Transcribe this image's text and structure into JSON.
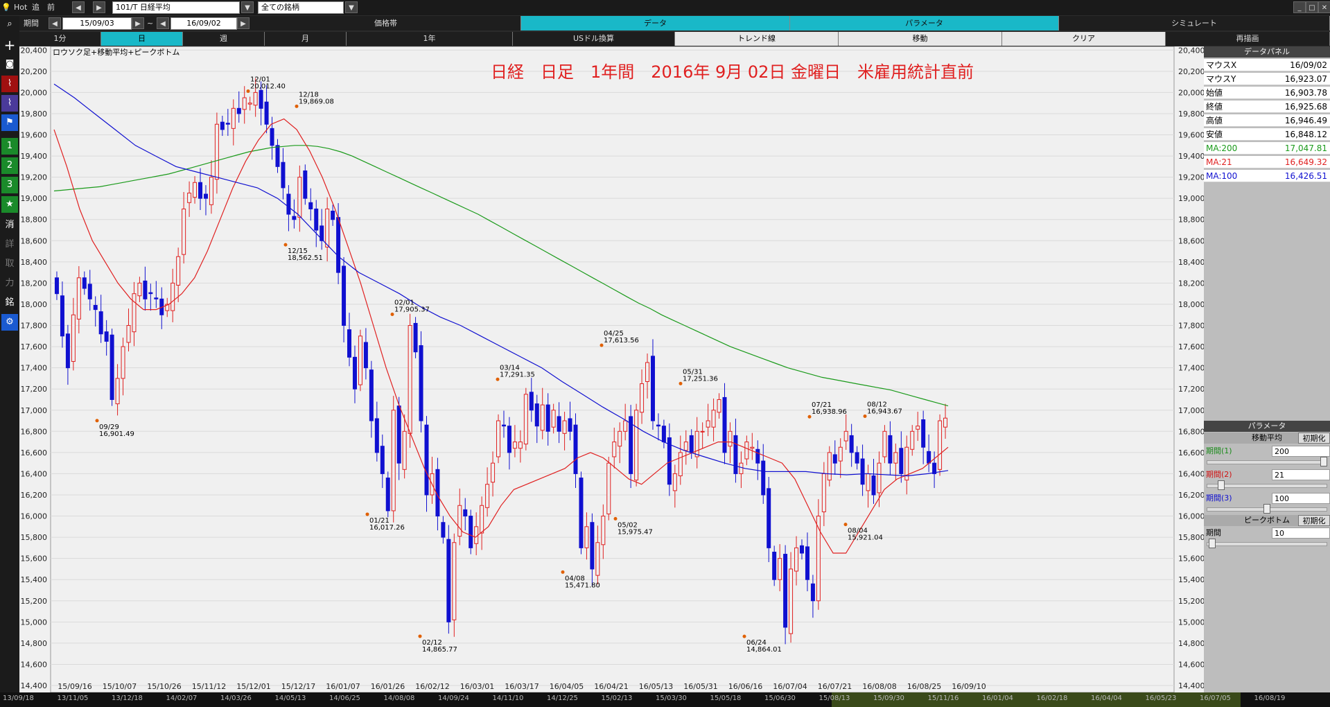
{
  "topbar": {
    "hot": "Hot",
    "back": "追",
    "prev": "前",
    "symbol": "101/T 日経平均",
    "universe": "全ての銘柄"
  },
  "period": {
    "label": "期間",
    "from": "15/09/03",
    "tilde": "~",
    "to": "16/09/02"
  },
  "tabs": [
    "価格帯",
    "データ",
    "パラメータ",
    "シミュレート"
  ],
  "subtabs": [
    "1分",
    "日",
    "週",
    "月",
    "1年",
    "USドル換算",
    "トレンド線",
    "移動",
    "クリア",
    "再描画"
  ],
  "sidebar": {
    "icons": [
      "search-icon",
      "crosshair-icon",
      "camera-icon",
      "chart-icon",
      "trend-icon",
      "flag-icon"
    ],
    "buttons": [
      "1",
      "2",
      "3",
      "★",
      "消",
      "詳",
      "取",
      "力",
      "銘",
      "⚙"
    ]
  },
  "chart": {
    "subtitle": "ロウソク足+移動平均+ピークボトム",
    "headline": "日経　日足　1年間　2016年 9月 02日 金曜日　米雇用統計直前",
    "colors": {
      "up": "#e02020",
      "down": "#1010d0",
      "ma200": "#1a9a1a",
      "ma21": "#e02020",
      "ma100": "#1010d0",
      "peak": "#e06000"
    }
  },
  "chart_data": {
    "type": "candlestick",
    "ylim": [
      14400,
      20500
    ],
    "yticks": [
      "20,400",
      "20,200",
      "20,000",
      "19,800",
      "19,600",
      "19,400",
      "19,200",
      "19,000",
      "18,800",
      "18,600",
      "18,400",
      "18,200",
      "18,000",
      "17,800",
      "17,600",
      "17,400",
      "17,200",
      "17,000",
      "16,800",
      "16,600",
      "16,400",
      "16,200",
      "16,000",
      "15,800",
      "15,600",
      "15,400",
      "15,200",
      "15,000",
      "14,800",
      "14,600",
      "14,400"
    ],
    "xticks": [
      "15/09/16",
      "15/10/07",
      "15/10/26",
      "15/11/12",
      "15/12/01",
      "15/12/17",
      "16/01/07",
      "16/01/26",
      "16/02/12",
      "16/03/01",
      "16/03/17",
      "16/04/05",
      "16/04/21",
      "16/05/13",
      "16/05/31",
      "16/06/16",
      "16/07/04",
      "16/07/21",
      "16/08/08",
      "16/08/25",
      "16/09/10"
    ],
    "closes": [
      18100,
      17700,
      17400,
      17900,
      18250,
      18150,
      18050,
      17950,
      17720,
      17650,
      17100,
      17300,
      17600,
      17800,
      18100,
      18200,
      18050,
      18100,
      18050,
      17900,
      18000,
      18200,
      18450,
      18900,
      19050,
      19150,
      19000,
      19000,
      19200,
      19700,
      19650,
      19700,
      19850,
      19800,
      19950,
      19900,
      20000,
      19850,
      19700,
      19500,
      19300,
      19100,
      18850,
      18800,
      19200,
      19000,
      18900,
      18700,
      18600,
      18900,
      18800,
      18300,
      17800,
      17500,
      17200,
      17700,
      17400,
      16900,
      16600,
      16400,
      16050,
      17000,
      16500,
      16800,
      17800,
      17550,
      16900,
      16200,
      16400,
      16000,
      15800,
      15000,
      15750,
      16100,
      16000,
      15700,
      15900,
      16100,
      16300,
      16500,
      16900,
      16850,
      16600,
      16700,
      16700,
      17150,
      17000,
      16850,
      17050,
      16800,
      17000,
      16800,
      16900,
      16800,
      16400,
      15700,
      15900,
      15500,
      15750,
      16000,
      16500,
      16700,
      16800,
      16900,
      16400,
      17000,
      17250,
      17450,
      16900,
      16850,
      16700,
      16300,
      16400,
      16600,
      16700,
      16600,
      16800,
      16800,
      16900,
      17000,
      17100,
      16600,
      16800,
      16400,
      16500,
      16700,
      16650,
      16500,
      16200,
      15700,
      15400,
      15600,
      14950,
      15500,
      15700,
      15650,
      15400,
      15200,
      16000,
      16400,
      16600,
      16500,
      16650,
      16800,
      16600,
      16500,
      16300,
      16400,
      16200,
      16500,
      16800,
      16500,
      16600,
      16400,
      16650,
      16800,
      16850,
      16650,
      16500,
      16400,
      16900,
      16925
    ],
    "ma200": [
      19070,
      19080,
      19090,
      19100,
      19110,
      19130,
      19150,
      19170,
      19190,
      19210,
      19230,
      19260,
      19290,
      19320,
      19350,
      19380,
      19410,
      19440,
      19460,
      19480,
      19490,
      19500,
      19500,
      19490,
      19470,
      19440,
      19400,
      19350,
      19300,
      19250,
      19200,
      19150,
      19100,
      19050,
      19000,
      18950,
      18900,
      18850,
      18790,
      18730,
      18670,
      18610,
      18550,
      18490,
      18430,
      18370,
      18310,
      18250,
      18190,
      18130,
      18070,
      18010,
      17960,
      17900,
      17850,
      17800,
      17750,
      17700,
      17650,
      17600,
      17560,
      17520,
      17480,
      17440,
      17400,
      17370,
      17340,
      17310,
      17290,
      17270,
      17250,
      17230,
      17210,
      17190,
      17160,
      17130,
      17100,
      17070,
      17040
    ],
    "ma21": [
      19650,
      19300,
      18900,
      18600,
      18400,
      18200,
      18050,
      17950,
      17950,
      18000,
      18100,
      18250,
      18500,
      18800,
      19100,
      19350,
      19550,
      19700,
      19750,
      19650,
      19450,
      19200,
      18900,
      18550,
      18200,
      17800,
      17400,
      17050,
      16750,
      16450,
      16200,
      16000,
      15850,
      15800,
      15900,
      16100,
      16250,
      16300,
      16350,
      16400,
      16450,
      16550,
      16600,
      16550,
      16450,
      16350,
      16300,
      16400,
      16500,
      16550,
      16600,
      16650,
      16700,
      16700,
      16650,
      16600,
      16550,
      16500,
      16350,
      16100,
      15850,
      15650,
      15650,
      15850,
      16050,
      16250,
      16350,
      16400,
      16450,
      16550,
      16650
    ],
    "ma100": [
      20080,
      19950,
      19800,
      19650,
      19500,
      19400,
      19300,
      19250,
      19200,
      19150,
      19100,
      19000,
      18850,
      18650,
      18450,
      18300,
      18200,
      18100,
      17980,
      17880,
      17800,
      17700,
      17600,
      17500,
      17400,
      17270,
      17150,
      17030,
      16920,
      16800,
      16700,
      16620,
      16560,
      16500,
      16450,
      16420,
      16420,
      16420,
      16400,
      16390,
      16400,
      16390,
      16380,
      16400,
      16430
    ],
    "annotations": [
      {
        "date": "12/01",
        "value": "20,012.40",
        "price": 20012
      },
      {
        "date": "12/18",
        "value": "19,869.08",
        "price": 19869
      },
      {
        "date": "12/15",
        "value": "18,562.51",
        "price": 18562
      },
      {
        "date": "09/29",
        "value": "16,901.49",
        "price": 16901
      },
      {
        "date": "02/01",
        "value": "17,905.37",
        "price": 17905
      },
      {
        "date": "01/21",
        "value": "16,017.26",
        "price": 16017
      },
      {
        "date": "02/12",
        "value": "14,865.77",
        "price": 14865
      },
      {
        "date": "03/14",
        "value": "17,291.35",
        "price": 17291
      },
      {
        "date": "04/08",
        "value": "15,471.80",
        "price": 15471
      },
      {
        "date": "04/25",
        "value": "17,613.56",
        "price": 17613
      },
      {
        "date": "05/02",
        "value": "15,975.47",
        "price": 15975
      },
      {
        "date": "05/31",
        "value": "17,251.36",
        "price": 17251
      },
      {
        "date": "06/24",
        "value": "14,864.01",
        "price": 14864
      },
      {
        "date": "07/21",
        "value": "16,938.96",
        "price": 16938
      },
      {
        "date": "08/04",
        "value": "15,921.04",
        "price": 15921
      },
      {
        "date": "08/12",
        "value": "16,943.67",
        "price": 16943
      }
    ]
  },
  "data_panel": {
    "title": "データパネル",
    "rows": [
      {
        "k": "マウスX",
        "v": "16/09/02"
      },
      {
        "k": "マウスY",
        "v": "16,923.07"
      },
      {
        "k": "始値",
        "v": "16,903.78"
      },
      {
        "k": "終値",
        "v": "16,925.68"
      },
      {
        "k": "高値",
        "v": "16,946.49"
      },
      {
        "k": "安値",
        "v": "16,848.12"
      },
      {
        "k": "MA:200",
        "v": "17,047.81"
      },
      {
        "k": "MA:21",
        "v": "16,649.32"
      },
      {
        "k": "MA:100",
        "v": "16,426.51"
      }
    ]
  },
  "params": {
    "title": "パラメータ",
    "ma_title": "移動平均",
    "init": "初期化",
    "p1_label": "期間(1)",
    "p1_value": "200",
    "p1_level": 1.0,
    "p2_label": "期間(2)",
    "p2_value": "21",
    "p2_level": 0.1,
    "p3_label": "期間(3)",
    "p3_value": "100",
    "p3_level": 0.5,
    "peak_title": "ピークボトム",
    "peak_label": "期間",
    "peak_value": "10",
    "peak_level": 0.02
  },
  "bottom_dates": [
    "13/09/18",
    "13/11/05",
    "13/12/18",
    "14/02/07",
    "14/03/26",
    "14/05/13",
    "14/06/25",
    "14/08/08",
    "14/09/24",
    "14/11/10",
    "14/12/25",
    "15/02/13",
    "15/03/30",
    "15/05/18",
    "15/06/30",
    "15/08/13",
    "15/09/30",
    "15/11/16",
    "16/01/04",
    "16/02/18",
    "16/04/04",
    "16/05/23",
    "16/07/05",
    "16/08/19"
  ]
}
